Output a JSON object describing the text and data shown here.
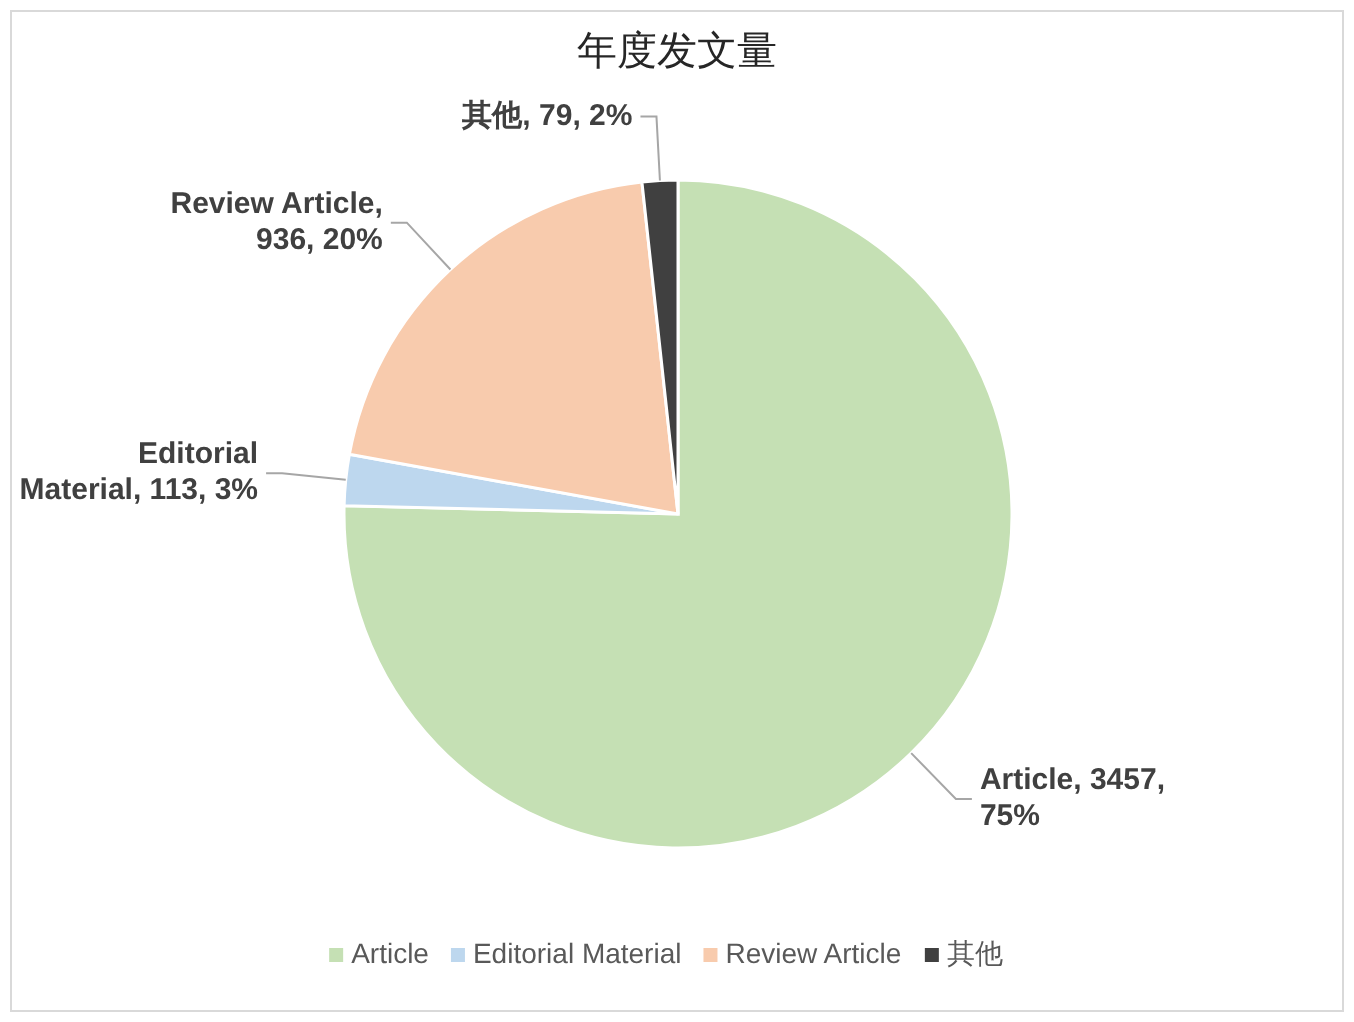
{
  "chart_data": {
    "type": "pie",
    "title": "年度发文量",
    "categories": [
      "Article",
      "Editorial Material",
      "Review Article",
      "其他"
    ],
    "values": [
      3457,
      113,
      936,
      79
    ],
    "colors": [
      "#c5e0b4",
      "#bdd7ee",
      "#f8cbad",
      "#404040"
    ],
    "value_labels": [
      "Article, 3457, 75%",
      "Editorial Material, 113, 3%",
      "Review Article, 936, 20%",
      "其他, 79, 2%"
    ],
    "legend": "bottom"
  }
}
